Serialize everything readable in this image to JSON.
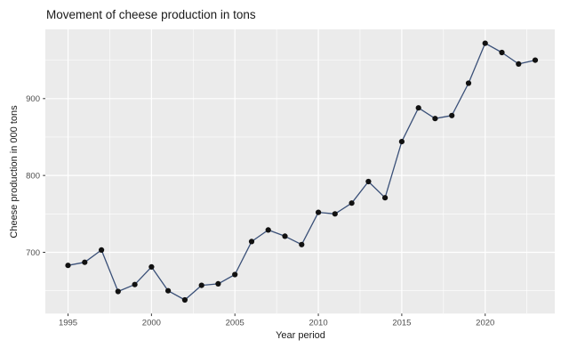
{
  "chart": {
    "title": "Movement of cheese production in tons",
    "x_label": "Year period",
    "y_label": "Cheese production in 000 tons"
  },
  "chart_data": {
    "type": "line",
    "title": "Movement of cheese production in tons",
    "xlabel": "Year period",
    "ylabel": "Cheese production in 000 tons",
    "x": [
      1995,
      1996,
      1997,
      1998,
      1999,
      2000,
      2001,
      2002,
      2003,
      2004,
      2005,
      2006,
      2007,
      2008,
      2009,
      2010,
      2011,
      2012,
      2013,
      2014,
      2015,
      2016,
      2017,
      2018,
      2019,
      2020,
      2021,
      2022,
      2023
    ],
    "y": [
      683,
      687,
      703,
      649,
      658,
      681,
      650,
      638,
      657,
      659,
      671,
      714,
      729,
      721,
      710,
      752,
      750,
      764,
      792,
      771,
      844,
      888,
      874,
      878,
      920,
      972,
      960,
      945,
      950
    ],
    "x_tick_labels": [
      "1995",
      "2000",
      "2005",
      "2010",
      "2015",
      "2020"
    ],
    "x_ticks": [
      1995,
      2000,
      2005,
      2010,
      2015,
      2020
    ],
    "x_minor_ticks": [
      1997.5,
      2002.5,
      2007.5,
      2012.5,
      2017.5,
      2022.5
    ],
    "y_tick_labels": [
      "700",
      "800",
      "900"
    ],
    "y_ticks": [
      700,
      800,
      900
    ],
    "y_minor_ticks": [
      650,
      750,
      850,
      950
    ],
    "xlim": [
      1993.64,
      2024.17
    ],
    "ylim": [
      620.3,
      990.1
    ],
    "grid": true,
    "legend": false,
    "colors": {
      "panel_background": "#EBEBEB",
      "grid_major": "#FFFFFF",
      "grid_minor": "#FFFFFF",
      "line": "#3a5078",
      "point": "#111111",
      "tick_mark": "#333333",
      "tick_label": "#4d4d4d",
      "title_text": "#1a1a1a"
    }
  }
}
